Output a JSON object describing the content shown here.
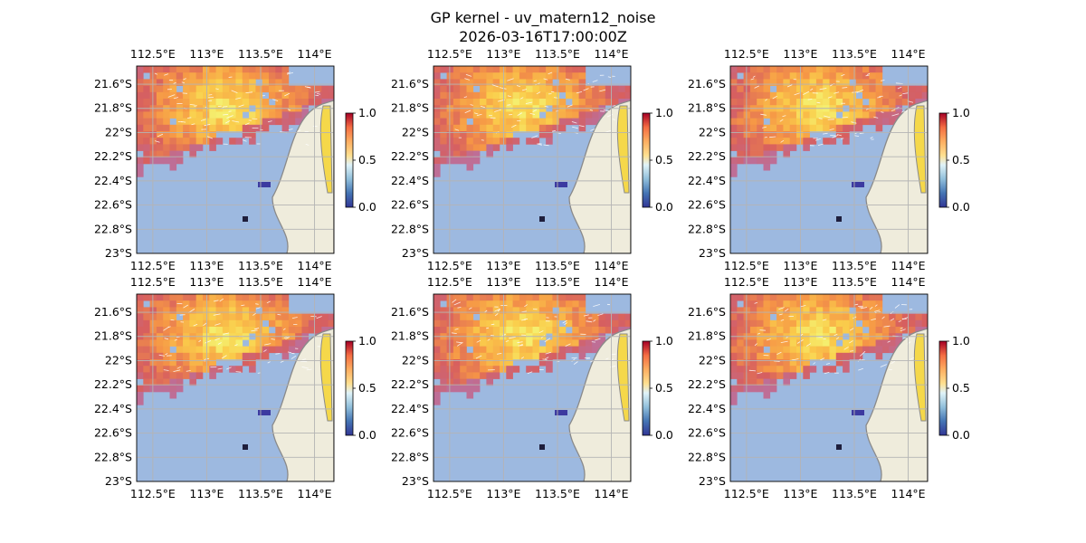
{
  "title": "GP kernel - uv_matern12_noise",
  "subtitle": "2026-03-16T17:00:00Z",
  "chart_data": {
    "type": "heatmap",
    "panel_count": 6,
    "x_ticks": [
      "112.5°E",
      "113°E",
      "113.5°E",
      "114°E"
    ],
    "x_tick_values": [
      112.5,
      113.0,
      113.5,
      114.0
    ],
    "y_ticks": [
      "21.6°S",
      "21.8°S",
      "22°S",
      "22.2°S",
      "22.4°S",
      "22.6°S",
      "22.8°S",
      "23°S"
    ],
    "y_tick_values": [
      -21.6,
      -21.8,
      -22.0,
      -22.2,
      -22.4,
      -22.6,
      -22.8,
      -23.0
    ],
    "xlim": [
      112.35,
      114.18
    ],
    "ylim": [
      -23.0,
      -21.45
    ],
    "grid": true,
    "colorbar": {
      "ticks": [
        "0.0",
        "0.5",
        "1.0"
      ],
      "range": [
        0.0,
        1.0
      ],
      "colormap": "RdYlBu_r"
    },
    "colors": {
      "ocean": "#9db9e0",
      "land": "#efecdc",
      "coast": "#8a8a8a",
      "grid": "#b4b4b4"
    },
    "features": [
      "vector arrows (white) overlaid",
      "coastline",
      "gridlines"
    ]
  }
}
